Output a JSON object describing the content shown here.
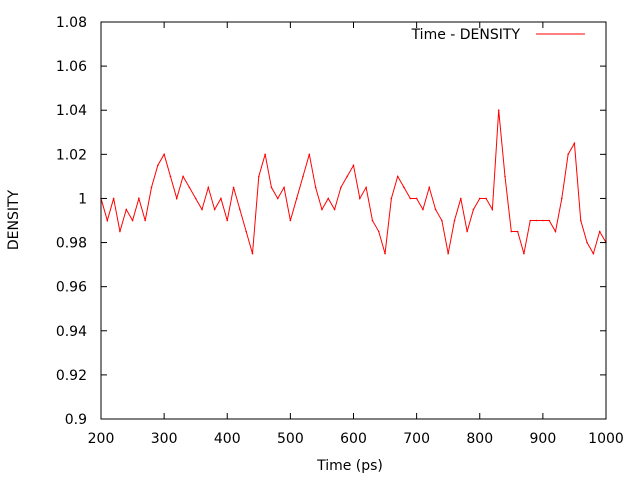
{
  "chart_data": {
    "type": "line",
    "xlabel": "Time (ps)",
    "ylabel": "DENSITY",
    "xlim": [
      200,
      1000
    ],
    "ylim": [
      0.9,
      1.08
    ],
    "x_ticks": [
      "200",
      "300",
      "400",
      "500",
      "600",
      "700",
      "800",
      "900",
      "1000"
    ],
    "y_ticks": [
      "0.9",
      "0.92",
      "0.94",
      "0.96",
      "0.98",
      "1",
      "1.02",
      "1.04",
      "1.06",
      "1.08"
    ],
    "grid": false,
    "legend_position": "top-right",
    "series": [
      {
        "name": "Time - DENSITY",
        "color": "#ff0000",
        "x": [
          200,
          210,
          220,
          230,
          240,
          250,
          260,
          270,
          280,
          290,
          300,
          310,
          320,
          330,
          340,
          350,
          360,
          370,
          380,
          390,
          400,
          410,
          420,
          430,
          440,
          450,
          460,
          470,
          480,
          490,
          500,
          510,
          520,
          530,
          540,
          550,
          560,
          570,
          580,
          590,
          600,
          610,
          620,
          630,
          640,
          650,
          660,
          670,
          680,
          690,
          700,
          710,
          720,
          730,
          740,
          750,
          760,
          770,
          780,
          790,
          800,
          810,
          820,
          830,
          840,
          850,
          860,
          870,
          880,
          890,
          900,
          910,
          920,
          930,
          940,
          950,
          960,
          970,
          980,
          990,
          1000
        ],
        "y": [
          1.0,
          0.99,
          1.0,
          0.985,
          0.995,
          0.99,
          1.0,
          0.99,
          1.005,
          1.015,
          1.02,
          1.01,
          1.0,
          1.01,
          1.005,
          1.0,
          0.995,
          1.005,
          0.995,
          1.0,
          0.99,
          1.005,
          0.995,
          0.985,
          0.975,
          1.01,
          1.02,
          1.005,
          1.0,
          1.005,
          0.99,
          1.0,
          1.01,
          1.02,
          1.005,
          0.995,
          1.0,
          0.995,
          1.005,
          1.01,
          1.015,
          1.0,
          1.005,
          0.99,
          0.985,
          0.975,
          1.0,
          1.01,
          1.005,
          1.0,
          1.0,
          0.995,
          1.005,
          0.995,
          0.99,
          0.975,
          0.99,
          1.0,
          0.985,
          0.995,
          1.0,
          1.0,
          0.995,
          1.04,
          1.01,
          0.985,
          0.985,
          0.975,
          0.99,
          0.99,
          0.99,
          0.99,
          0.985,
          1.0,
          1.02,
          1.025,
          0.99,
          0.98,
          0.975,
          0.985,
          0.98
        ]
      }
    ]
  }
}
